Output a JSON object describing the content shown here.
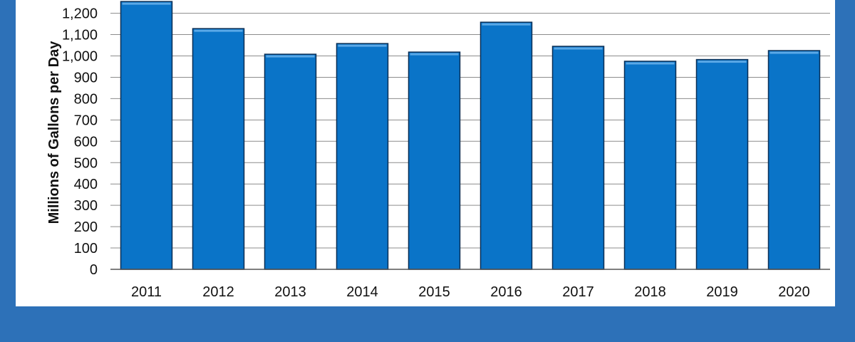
{
  "colors": {
    "page_background": "#2d71b8",
    "panel_background": "#ffffff",
    "bar_fill": "#0a74c8",
    "bar_stroke": "#0a2f55",
    "gridline": "#8c8c8c"
  },
  "chart_data": {
    "type": "bar",
    "title": "",
    "xlabel": "",
    "ylabel": "Millions of Gallons per Day",
    "categories": [
      "2011",
      "2012",
      "2013",
      "2014",
      "2015",
      "2016",
      "2017",
      "2018",
      "2019",
      "2020"
    ],
    "values": [
      1255,
      1128,
      1008,
      1058,
      1018,
      1158,
      1045,
      975,
      983,
      1025
    ],
    "ylim": [
      0,
      1250
    ],
    "yticks": [
      0,
      100,
      200,
      300,
      400,
      500,
      600,
      700,
      800,
      900,
      1000,
      1100,
      1200
    ],
    "ytick_labels": [
      "0",
      "100",
      "200",
      "300",
      "400",
      "500",
      "600",
      "700",
      "800",
      "900",
      "1,000",
      "1,100",
      "1,200"
    ],
    "grid": true,
    "legend": "none"
  }
}
